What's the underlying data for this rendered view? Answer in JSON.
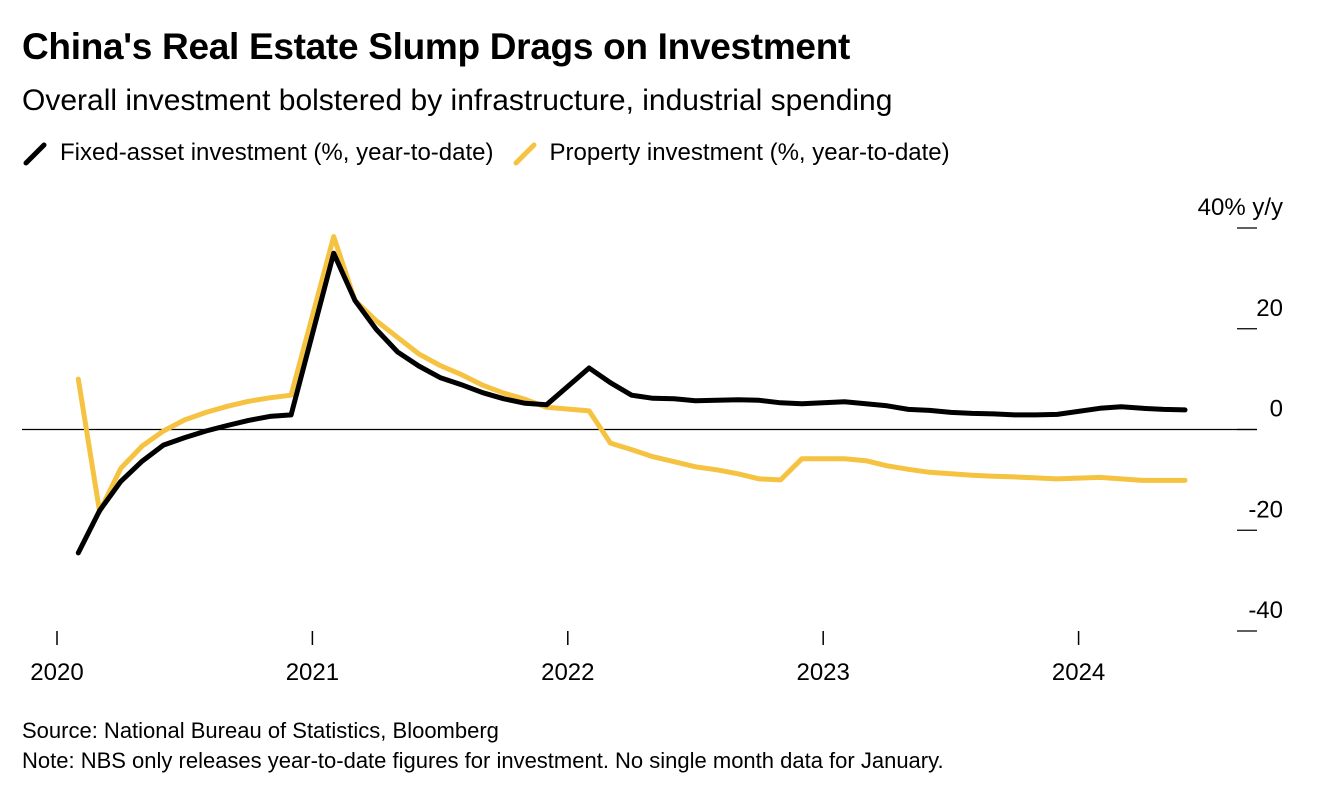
{
  "title": "China's Real Estate Slump Drags on Investment",
  "subtitle": "Overall investment bolstered by infrastructure, industrial spending",
  "source": "Source: National Bureau of Statistics, Bloomberg",
  "note": "Note: NBS only releases year-to-date figures for investment. No single month data for January.",
  "chart_data": {
    "type": "line",
    "title": "China's Real Estate Slump Drags on Investment",
    "subtitle": "Overall investment bolstered by infrastructure, industrial spending",
    "xlabel": "",
    "ylabel": "% y/y",
    "x_ticks": [
      "2020",
      "2021",
      "2022",
      "2023",
      "2024"
    ],
    "y_ticks": [
      40,
      20,
      0,
      -20,
      -40
    ],
    "y_tick_labels": [
      "40% y/y",
      "20",
      "0",
      "-20",
      "-40"
    ],
    "ylim": [
      -40,
      40
    ],
    "xlim": [
      "2020-01",
      "2024-06"
    ],
    "x": [
      "2020-02",
      "2020-03",
      "2020-04",
      "2020-05",
      "2020-06",
      "2020-07",
      "2020-08",
      "2020-09",
      "2020-10",
      "2020-11",
      "2020-12",
      "2021-02",
      "2021-03",
      "2021-04",
      "2021-05",
      "2021-06",
      "2021-07",
      "2021-08",
      "2021-09",
      "2021-10",
      "2021-11",
      "2021-12",
      "2022-02",
      "2022-03",
      "2022-04",
      "2022-05",
      "2022-06",
      "2022-07",
      "2022-08",
      "2022-09",
      "2022-10",
      "2022-11",
      "2022-12",
      "2023-02",
      "2023-03",
      "2023-04",
      "2023-05",
      "2023-06",
      "2023-07",
      "2023-08",
      "2023-09",
      "2023-10",
      "2023-11",
      "2023-12",
      "2024-02",
      "2024-03",
      "2024-04",
      "2024-05",
      "2024-06"
    ],
    "series": [
      {
        "name": "Fixed-asset investment (%, year-to-date)",
        "color": "#000000",
        "values": [
          -24.5,
          -16.1,
          -10.3,
          -6.3,
          -3.1,
          -1.6,
          -0.3,
          0.8,
          1.8,
          2.6,
          2.9,
          35.0,
          25.6,
          19.9,
          15.4,
          12.6,
          10.3,
          8.9,
          7.3,
          6.1,
          5.2,
          4.9,
          12.2,
          9.3,
          6.8,
          6.2,
          6.1,
          5.7,
          5.8,
          5.9,
          5.8,
          5.3,
          5.1,
          5.5,
          5.1,
          4.7,
          4.0,
          3.8,
          3.4,
          3.2,
          3.1,
          2.9,
          2.9,
          3.0,
          4.2,
          4.5,
          4.2,
          4.0,
          3.9
        ]
      },
      {
        "name": "Property investment (%, year-to-date)",
        "color": "#f5c341",
        "values": [
          10.0,
          -16.3,
          -7.7,
          -3.3,
          -0.3,
          1.9,
          3.4,
          4.6,
          5.6,
          6.3,
          6.8,
          38.3,
          25.6,
          21.6,
          18.3,
          15.0,
          12.7,
          10.9,
          8.8,
          7.2,
          6.0,
          4.4,
          3.7,
          -2.7,
          -4.0,
          -5.4,
          -6.4,
          -7.4,
          -8.0,
          -8.8,
          -9.8,
          -10.0,
          -5.8,
          -5.8,
          -6.2,
          -7.2,
          -7.9,
          -8.5,
          -8.8,
          -9.1,
          -9.3,
          -9.4,
          -9.6,
          -9.8,
          -9.5,
          -9.8,
          -10.1,
          -10.1,
          -10.1
        ]
      }
    ],
    "grid": false,
    "legend_position": "top-left"
  }
}
